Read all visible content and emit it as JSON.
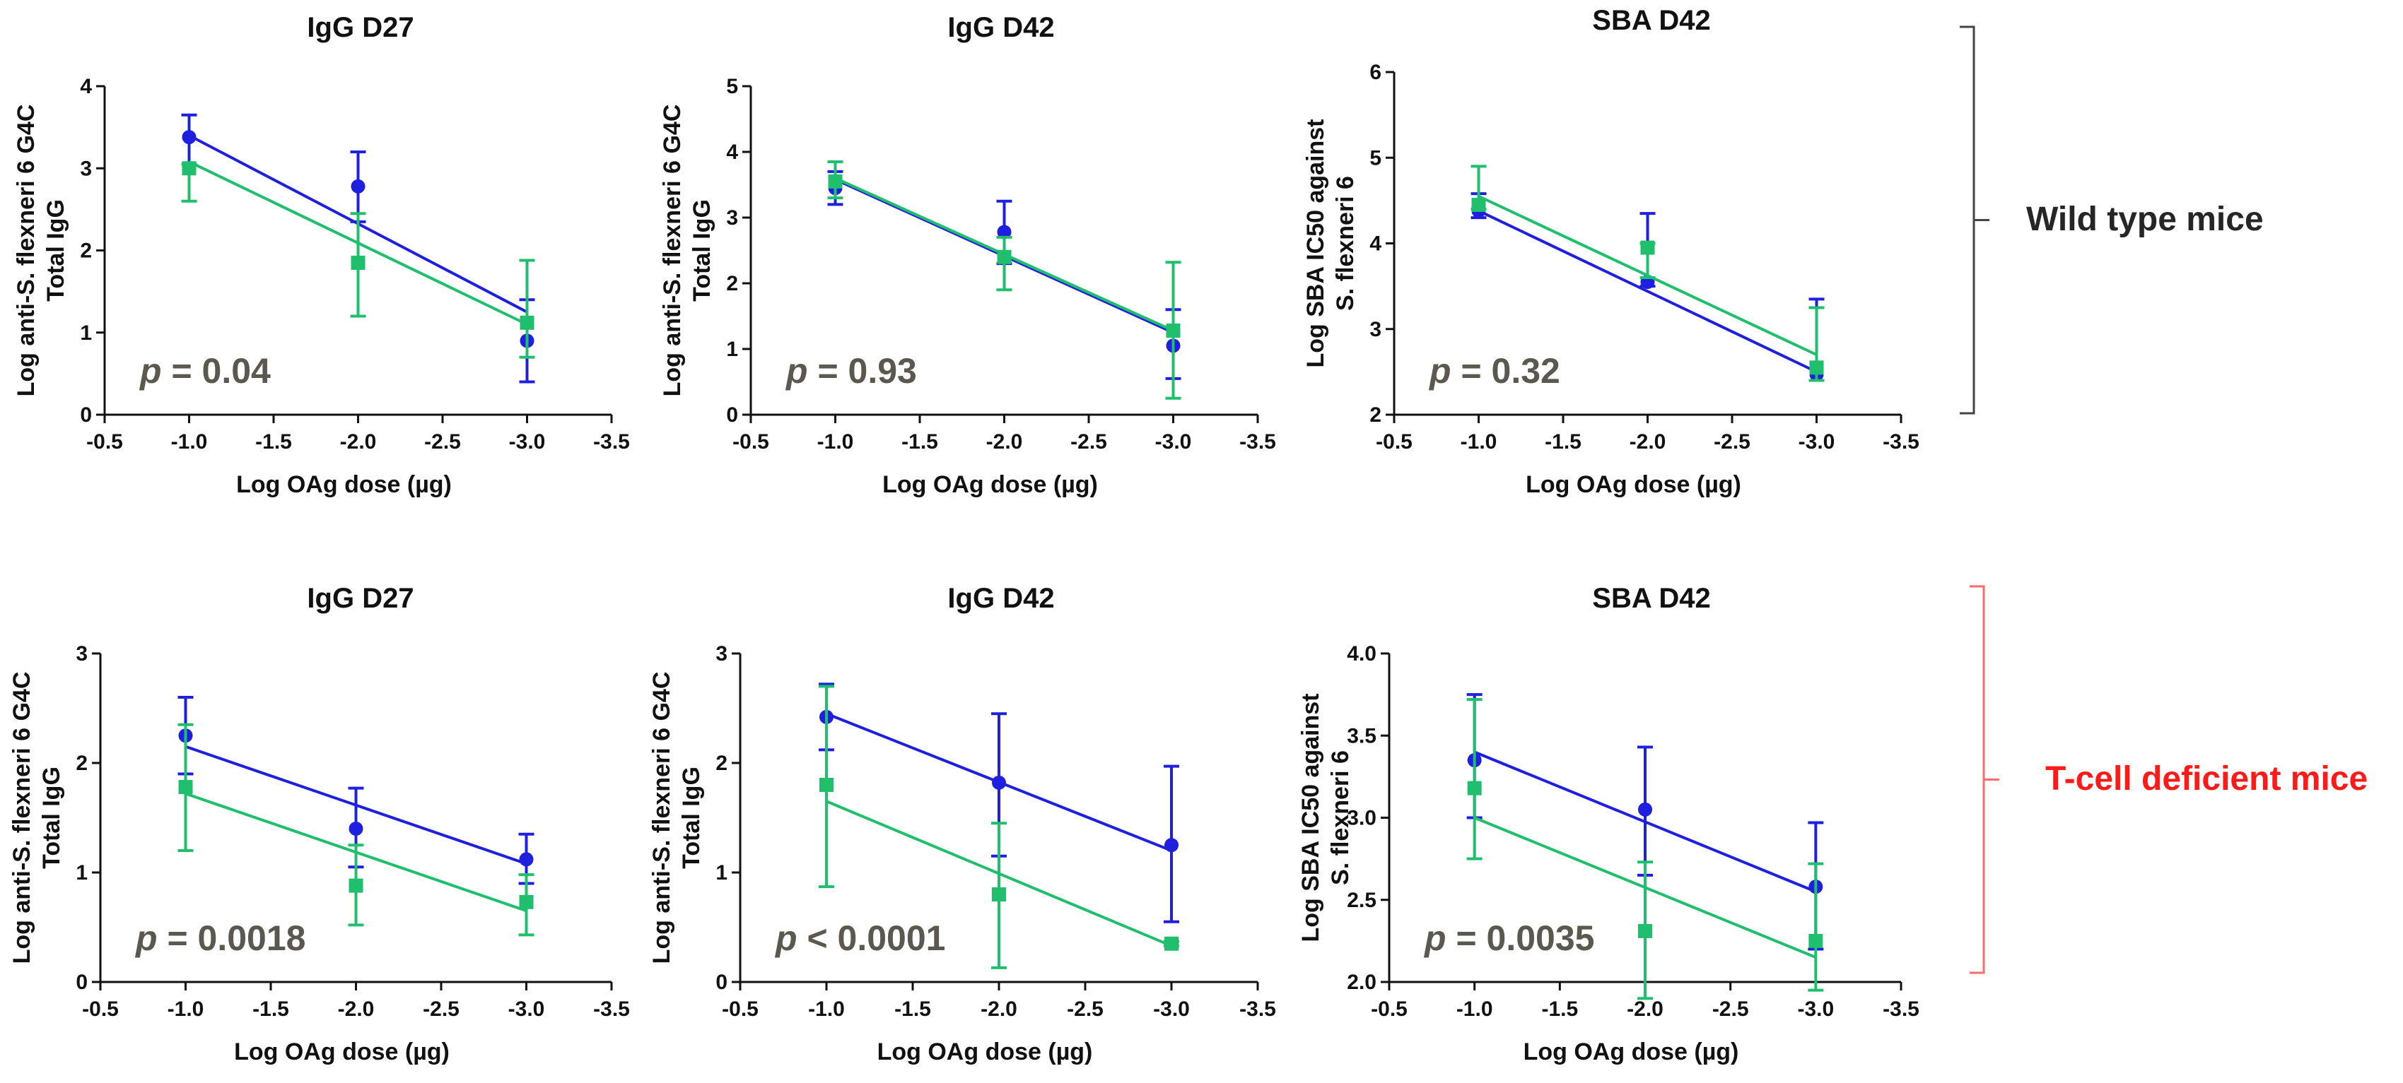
{
  "chart_data": [
    {
      "type": "scatter",
      "title": "IgG D27",
      "xlabel": "Log OAg dose (µg)",
      "ylabel": [
        "Log anti-S. flexneri 6 G4C",
        "Total IgG"
      ],
      "xlim": [
        -0.5,
        -3.5
      ],
      "ylim": [
        0,
        4
      ],
      "xticks": [
        "-0.5",
        "-1.0",
        "-1.5",
        "-2.0",
        "-2.5",
        "-3.0",
        "-3.5"
      ],
      "yticks": [
        "0",
        "1",
        "2",
        "3",
        "4"
      ],
      "annotation": {
        "label": "p",
        "text": " = 0.04"
      },
      "series": [
        {
          "name": "blue",
          "color": "#1f1fe0",
          "marker": "circle",
          "points": [
            {
              "x": -1.0,
              "y": 3.38,
              "lo": 3.05,
              "hi": 3.65
            },
            {
              "x": -2.0,
              "y": 2.78,
              "lo": 2.35,
              "hi": 3.2
            },
            {
              "x": -3.0,
              "y": 0.9,
              "lo": 0.4,
              "hi": 1.4
            }
          ],
          "fit": [
            [
              -1.0,
              3.4
            ],
            [
              -3.0,
              1.25
            ]
          ]
        },
        {
          "name": "green",
          "color": "#1fbf6e",
          "marker": "square",
          "points": [
            {
              "x": -1.0,
              "y": 3.0,
              "lo": 2.6,
              "hi": 3.05
            },
            {
              "x": -2.0,
              "y": 1.85,
              "lo": 1.2,
              "hi": 2.45
            },
            {
              "x": -3.0,
              "y": 1.12,
              "lo": 0.7,
              "hi": 1.88
            }
          ],
          "fit": [
            [
              -1.0,
              3.08
            ],
            [
              -3.0,
              1.1
            ]
          ]
        }
      ]
    },
    {
      "type": "scatter",
      "title": "IgG D42",
      "xlabel": "Log OAg dose (µg)",
      "ylabel": [
        "Log anti-S. flexneri 6 G4C",
        "Total IgG"
      ],
      "xlim": [
        -0.5,
        -3.5
      ],
      "ylim": [
        0,
        5
      ],
      "xticks": [
        "-0.5",
        "-1.0",
        "-1.5",
        "-2.0",
        "-2.5",
        "-3.0",
        "-3.5"
      ],
      "yticks": [
        "0",
        "1",
        "2",
        "3",
        "4",
        "5"
      ],
      "annotation": {
        "label": "p",
        "text": " = 0.93"
      },
      "series": [
        {
          "name": "blue",
          "color": "#1f1fe0",
          "marker": "circle",
          "points": [
            {
              "x": -1.0,
              "y": 3.45,
              "lo": 3.2,
              "hi": 3.7
            },
            {
              "x": -2.0,
              "y": 2.78,
              "lo": 2.3,
              "hi": 3.25
            },
            {
              "x": -3.0,
              "y": 1.05,
              "lo": 0.55,
              "hi": 1.6
            }
          ],
          "fit": [
            [
              -1.0,
              3.58
            ],
            [
              -3.0,
              1.25
            ]
          ]
        },
        {
          "name": "green",
          "color": "#1fbf6e",
          "marker": "square",
          "points": [
            {
              "x": -1.0,
              "y": 3.55,
              "lo": 3.3,
              "hi": 3.85
            },
            {
              "x": -2.0,
              "y": 2.4,
              "lo": 1.9,
              "hi": 2.7
            },
            {
              "x": -3.0,
              "y": 1.28,
              "lo": 0.25,
              "hi": 2.32
            }
          ],
          "fit": [
            [
              -1.0,
              3.6
            ],
            [
              -3.0,
              1.28
            ]
          ]
        }
      ]
    },
    {
      "type": "scatter",
      "title": "SBA D42",
      "xlabel": "Log OAg dose (µg)",
      "ylabel": [
        "Log SBA IC50 against",
        "S. flexneri 6"
      ],
      "xlim": [
        -0.5,
        -3.5
      ],
      "ylim": [
        2,
        6
      ],
      "xticks": [
        "-0.5",
        "-1.0",
        "-1.5",
        "-2.0",
        "-2.5",
        "-3.0",
        "-3.5"
      ],
      "yticks": [
        "2",
        "3",
        "4",
        "5",
        "6"
      ],
      "annotation": {
        "label": "p",
        "text": " = 0.32"
      },
      "series": [
        {
          "name": "blue",
          "color": "#1f1fe0",
          "marker": "circle",
          "points": [
            {
              "x": -1.0,
              "y": 4.38,
              "lo": 4.3,
              "hi": 4.58
            },
            {
              "x": -2.0,
              "y": 3.55,
              "lo": 3.5,
              "hi": 4.35
            },
            {
              "x": -3.0,
              "y": 2.47,
              "lo": 2.4,
              "hi": 3.35
            }
          ],
          "fit": [
            [
              -1.0,
              4.38
            ],
            [
              -3.0,
              2.5
            ]
          ]
        },
        {
          "name": "green",
          "color": "#1fbf6e",
          "marker": "square",
          "points": [
            {
              "x": -1.0,
              "y": 4.45,
              "lo": 4.4,
              "hi": 4.9
            },
            {
              "x": -2.0,
              "y": 3.95,
              "lo": 3.6,
              "hi": 4.0
            },
            {
              "x": -3.0,
              "y": 2.55,
              "lo": 2.4,
              "hi": 3.25
            }
          ],
          "fit": [
            [
              -1.0,
              4.55
            ],
            [
              -3.0,
              2.7
            ]
          ]
        }
      ]
    },
    {
      "type": "scatter",
      "title": "IgG D27",
      "xlabel": "Log OAg dose (µg)",
      "ylabel": [
        "Log anti-S. flexneri 6 G4C",
        "Total IgG"
      ],
      "xlim": [
        -0.5,
        -3.5
      ],
      "ylim": [
        0,
        3
      ],
      "xticks": [
        "-0.5",
        "-1.0",
        "-1.5",
        "-2.0",
        "-2.5",
        "-3.0",
        "-3.5"
      ],
      "yticks": [
        "0",
        "1",
        "2",
        "3"
      ],
      "annotation": {
        "label": "p",
        "text": " = 0.0018"
      },
      "series": [
        {
          "name": "blue",
          "color": "#1f1fe0",
          "marker": "circle",
          "points": [
            {
              "x": -1.0,
              "y": 2.25,
              "lo": 1.9,
              "hi": 2.6
            },
            {
              "x": -2.0,
              "y": 1.4,
              "lo": 1.05,
              "hi": 1.77
            },
            {
              "x": -3.0,
              "y": 1.12,
              "lo": 0.9,
              "hi": 1.35
            }
          ],
          "fit": [
            [
              -1.0,
              2.15
            ],
            [
              -3.0,
              1.08
            ]
          ]
        },
        {
          "name": "green",
          "color": "#1fbf6e",
          "marker": "square",
          "points": [
            {
              "x": -1.0,
              "y": 1.78,
              "lo": 1.2,
              "hi": 2.35
            },
            {
              "x": -2.0,
              "y": 0.88,
              "lo": 0.52,
              "hi": 1.25
            },
            {
              "x": -3.0,
              "y": 0.73,
              "lo": 0.43,
              "hi": 0.98
            }
          ],
          "fit": [
            [
              -1.0,
              1.72
            ],
            [
              -3.0,
              0.65
            ]
          ]
        }
      ]
    },
    {
      "type": "scatter",
      "title": "IgG D42",
      "xlabel": "Log OAg dose (µg)",
      "ylabel": [
        "Log anti-S. flexneri 6 G4C",
        "Total IgG"
      ],
      "xlim": [
        -0.5,
        -3.5
      ],
      "ylim": [
        0,
        3
      ],
      "xticks": [
        "-0.5",
        "-1.0",
        "-1.5",
        "-2.0",
        "-2.5",
        "-3.0",
        "-3.5"
      ],
      "yticks": [
        "0",
        "1",
        "2",
        "3"
      ],
      "annotation": {
        "label": "p",
        "text": " < 0.0001"
      },
      "series": [
        {
          "name": "blue",
          "color": "#1f1fe0",
          "marker": "circle",
          "points": [
            {
              "x": -1.0,
              "y": 2.42,
              "lo": 2.12,
              "hi": 2.72
            },
            {
              "x": -2.0,
              "y": 1.82,
              "lo": 1.15,
              "hi": 2.45
            },
            {
              "x": -3.0,
              "y": 1.25,
              "lo": 0.55,
              "hi": 1.97
            }
          ],
          "fit": [
            [
              -1.0,
              2.45
            ],
            [
              -3.0,
              1.2
            ]
          ]
        },
        {
          "name": "green",
          "color": "#1fbf6e",
          "marker": "square",
          "points": [
            {
              "x": -1.0,
              "y": 1.8,
              "lo": 0.87,
              "hi": 2.7
            },
            {
              "x": -2.0,
              "y": 0.8,
              "lo": 0.13,
              "hi": 1.45
            },
            {
              "x": -3.0,
              "y": 0.35,
              "lo": 0.33,
              "hi": 0.37
            }
          ],
          "fit": [
            [
              -1.0,
              1.65
            ],
            [
              -3.0,
              0.33
            ]
          ]
        }
      ]
    },
    {
      "type": "scatter",
      "title": "SBA D42",
      "xlabel": "Log OAg dose (µg)",
      "ylabel": [
        "Log SBA IC50 against",
        "S. flexneri 6"
      ],
      "xlim": [
        -0.5,
        -3.5
      ],
      "ylim": [
        2.0,
        4.0
      ],
      "xticks": [
        "-0.5",
        "-1.0",
        "-1.5",
        "-2.0",
        "-2.5",
        "-3.0",
        "-3.5"
      ],
      "yticks": [
        "2.0",
        "2.5",
        "3.0",
        "3.5",
        "4.0"
      ],
      "annotation": {
        "label": "p",
        "text": " = 0.0035"
      },
      "series": [
        {
          "name": "blue",
          "color": "#1f1fe0",
          "marker": "circle",
          "points": [
            {
              "x": -1.0,
              "y": 3.35,
              "lo": 3.0,
              "hi": 3.75
            },
            {
              "x": -2.0,
              "y": 3.05,
              "lo": 2.65,
              "hi": 3.43
            },
            {
              "x": -3.0,
              "y": 2.58,
              "lo": 2.2,
              "hi": 2.97
            }
          ],
          "fit": [
            [
              -1.0,
              3.4
            ],
            [
              -3.0,
              2.55
            ]
          ]
        },
        {
          "name": "green",
          "color": "#1fbf6e",
          "marker": "square",
          "points": [
            {
              "x": -1.0,
              "y": 3.18,
              "lo": 2.75,
              "hi": 3.72
            },
            {
              "x": -2.0,
              "y": 2.31,
              "lo": 1.9,
              "hi": 2.73
            },
            {
              "x": -3.0,
              "y": 2.25,
              "lo": 1.95,
              "hi": 2.72
            }
          ],
          "fit": [
            [
              -1.0,
              3.0
            ],
            [
              -3.0,
              2.15
            ]
          ]
        }
      ]
    }
  ],
  "groups": [
    {
      "label": "Wild type mice",
      "color": "#262626",
      "bracket_color": "#444444"
    },
    {
      "label": "T-cell deficient mice",
      "color": "#ff1a1a",
      "bracket_color": "#ff6a6a"
    }
  ]
}
